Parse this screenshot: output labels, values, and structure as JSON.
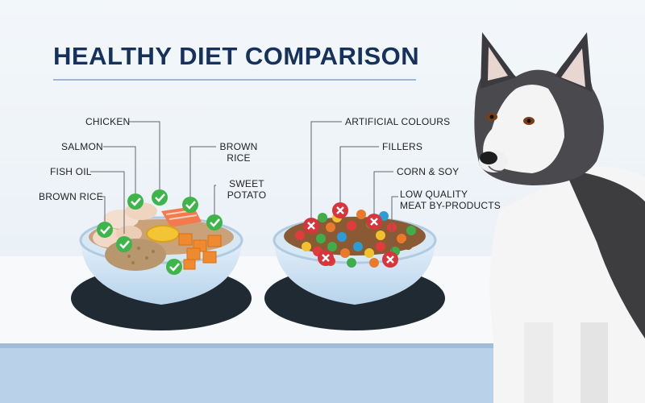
{
  "title": "HEALTHY DIET COMPARISON",
  "healthy_bowl": {
    "labels": {
      "chicken": "CHICKEN",
      "salmon": "SALMON",
      "fish_oil": "FISH OIL",
      "brown_rice_left": "BROWN RICE",
      "brown_rice_right_1": "BROWN",
      "brown_rice_right_2": "RICE",
      "sweet_potato_1": "SWEET",
      "sweet_potato_2": "POTATO"
    },
    "marker": "check"
  },
  "unhealthy_bowl": {
    "labels": {
      "artificial_colours": "ARTIFICIAL COLOURS",
      "fillers": "FILLERS",
      "corn_soy": "CORN & SOY",
      "low_quality_1": "LOW QUALITY",
      "low_quality_2": "MEAT BY-PRODUCTS"
    },
    "marker": "cross"
  },
  "colors": {
    "title": "#16325c",
    "check": "#3db54a",
    "cross": "#d8343b",
    "bowl": "#cfe3f3",
    "bowl_rim": "#1f2a33"
  },
  "icons": [
    "check-icon",
    "cross-icon",
    "dog-illustration"
  ]
}
